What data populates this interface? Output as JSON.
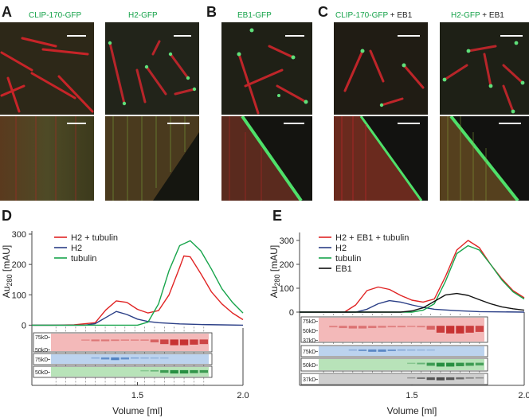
{
  "panels": {
    "A": {
      "label": "A",
      "headers": [
        "CLIP-170-GFP",
        "H2-GFP"
      ]
    },
    "B": {
      "label": "B",
      "headers": [
        "EB1-GFP"
      ]
    },
    "C": {
      "label": "C",
      "headers": [
        {
          "main": "CLIP-170-GFP",
          "extra": " + EB1"
        },
        {
          "main": "H2-GFP",
          "extra": " + EB1"
        }
      ]
    },
    "D": {
      "label": "D"
    },
    "E": {
      "label": "E"
    }
  },
  "colors": {
    "red": "#e02424",
    "blue": "#2a3e86",
    "green": "#17a44b",
    "black": "#111111"
  },
  "chart_data": [
    {
      "type": "line",
      "panel": "D",
      "xlabel": "Volume [ml]",
      "ylabel": "Au280 [mAU]",
      "ylabel_main": "Au",
      "ylabel_sub": "280",
      "ylabel_unit": " [mAU]",
      "xlim": [
        1.0,
        2.0
      ],
      "ylim": [
        -20,
        300
      ],
      "xticks": [
        "1.5",
        "2.0"
      ],
      "xtick_values": [
        1.5,
        2.0
      ],
      "yticks": [
        "0",
        "100",
        "200",
        "300"
      ],
      "ytick_values": [
        0,
        100,
        200,
        300
      ],
      "legend": "top-left",
      "series": [
        {
          "name": "H2 + tubulin",
          "color": "#e02424",
          "x": [
            1.0,
            1.1,
            1.2,
            1.3,
            1.35,
            1.4,
            1.45,
            1.5,
            1.55,
            1.6,
            1.65,
            1.7,
            1.72,
            1.75,
            1.8,
            1.85,
            1.9,
            1.95,
            2.0
          ],
          "y": [
            0,
            0,
            1,
            8,
            50,
            80,
            75,
            52,
            40,
            48,
            100,
            190,
            228,
            225,
            170,
            110,
            70,
            40,
            18
          ]
        },
        {
          "name": "H2",
          "color": "#2a3e86",
          "x": [
            1.0,
            1.25,
            1.3,
            1.35,
            1.4,
            1.45,
            1.5,
            1.55,
            1.6,
            1.7,
            1.8,
            1.9,
            2.0
          ],
          "y": [
            0,
            0,
            5,
            25,
            45,
            35,
            20,
            12,
            8,
            4,
            2,
            1,
            0
          ]
        },
        {
          "name": "tubulin",
          "color": "#17a44b",
          "x": [
            1.0,
            1.5,
            1.55,
            1.6,
            1.65,
            1.7,
            1.75,
            1.8,
            1.85,
            1.9,
            1.95,
            2.0
          ],
          "y": [
            0,
            0,
            10,
            70,
            180,
            262,
            278,
            245,
            185,
            120,
            75,
            40
          ]
        }
      ],
      "gels": [
        {
          "tone": "red",
          "markers": [
            "75kD",
            "50kD"
          ]
        },
        {
          "tone": "blue",
          "markers": [
            "75kD"
          ]
        },
        {
          "tone": "green",
          "markers": [
            "50kD"
          ]
        }
      ]
    },
    {
      "type": "line",
      "panel": "E",
      "xlabel": "Volume [ml]",
      "ylabel": "Au280 [mAU]",
      "ylabel_main": "Au",
      "ylabel_sub": "280",
      "ylabel_unit": " [mAU]",
      "xlim": [
        1.0,
        2.0
      ],
      "ylim": [
        -20,
        320
      ],
      "xticks": [
        "1.5",
        "2.0"
      ],
      "xtick_values": [
        1.5,
        2.0
      ],
      "yticks": [
        "0",
        "100",
        "200",
        "300"
      ],
      "ytick_values": [
        0,
        100,
        200,
        300
      ],
      "legend": "top-left",
      "series": [
        {
          "name": "H2 + EB1 + tubulin",
          "color": "#e02424",
          "x": [
            1.0,
            1.2,
            1.25,
            1.3,
            1.35,
            1.4,
            1.45,
            1.5,
            1.55,
            1.6,
            1.65,
            1.7,
            1.75,
            1.8,
            1.85,
            1.9,
            1.95,
            2.0
          ],
          "y": [
            0,
            0,
            30,
            90,
            105,
            95,
            70,
            50,
            42,
            55,
            150,
            260,
            300,
            270,
            200,
            140,
            90,
            60
          ]
        },
        {
          "name": "H2",
          "color": "#2a3e86",
          "x": [
            1.0,
            1.25,
            1.3,
            1.35,
            1.4,
            1.45,
            1.5,
            1.55,
            1.6,
            1.7,
            1.8,
            2.0
          ],
          "y": [
            0,
            0,
            12,
            35,
            48,
            42,
            30,
            20,
            12,
            6,
            2,
            0
          ]
        },
        {
          "name": "tubulin",
          "color": "#17a44b",
          "x": [
            1.0,
            1.5,
            1.55,
            1.6,
            1.65,
            1.7,
            1.75,
            1.8,
            1.85,
            1.9,
            1.95,
            2.0
          ],
          "y": [
            0,
            0,
            8,
            35,
            130,
            245,
            278,
            260,
            200,
            135,
            85,
            55
          ]
        },
        {
          "name": "EB1",
          "color": "#111111",
          "x": [
            1.0,
            1.45,
            1.5,
            1.55,
            1.6,
            1.65,
            1.7,
            1.75,
            1.8,
            1.85,
            1.9,
            1.95,
            2.0
          ],
          "y": [
            0,
            0,
            5,
            18,
            45,
            72,
            78,
            70,
            52,
            35,
            22,
            14,
            8
          ]
        }
      ],
      "gels": [
        {
          "tone": "red",
          "markers": [
            "75kD",
            "50kD",
            "37kD"
          ]
        },
        {
          "tone": "blue",
          "markers": [
            "75kD"
          ]
        },
        {
          "tone": "green",
          "markers": [
            "50kD"
          ]
        },
        {
          "tone": "gray",
          "markers": [
            "37kD"
          ]
        }
      ]
    }
  ]
}
